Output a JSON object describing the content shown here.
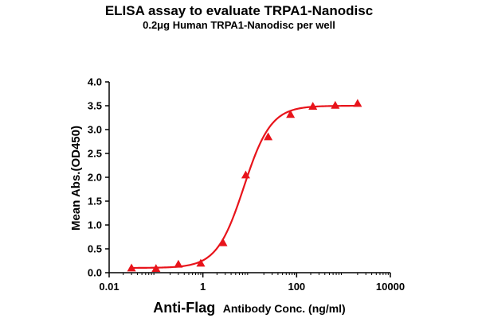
{
  "chart_data": {
    "type": "scatter",
    "title": "ELISA assay to evaluate TRPA1-Nanodisc",
    "subtitle": "0.2μg Human TRPA1-Nanodisc per well",
    "xlabel_main": "Anti-Flag",
    "xlabel_rest": "Antibody Conc. (ng/ml)",
    "ylabel": "Mean Abs.(OD450)",
    "x_scale": "log",
    "xlim": [
      0.01,
      10000
    ],
    "ylim": [
      0,
      4.0
    ],
    "x_ticks": [
      0.01,
      1,
      100,
      10000
    ],
    "x_tick_labels": [
      "0.01",
      "1",
      "100",
      "10000"
    ],
    "y_ticks": [
      0,
      0.5,
      1.0,
      1.5,
      2.0,
      2.5,
      3.0,
      3.5,
      4.0
    ],
    "y_tick_labels": [
      "0.0",
      "0.5",
      "1.0",
      "1.5",
      "2.0",
      "2.5",
      "3.0",
      "3.5",
      "4.0"
    ],
    "series": [
      {
        "marker": "triangle",
        "color": "#e8141b",
        "x": [
          0.03,
          0.1,
          0.3,
          0.9,
          2.7,
          8.2,
          24.7,
          74,
          222,
          667,
          2000
        ],
        "y": [
          0.1,
          0.09,
          0.18,
          0.2,
          0.63,
          2.05,
          2.85,
          3.32,
          3.49,
          3.51,
          3.55
        ]
      }
    ],
    "fit_curve": {
      "color": "#e8141b",
      "bottom": 0.1,
      "top": 3.5,
      "ec50": 7.5,
      "hill": 1.5
    },
    "grid": false,
    "legend": "none"
  }
}
